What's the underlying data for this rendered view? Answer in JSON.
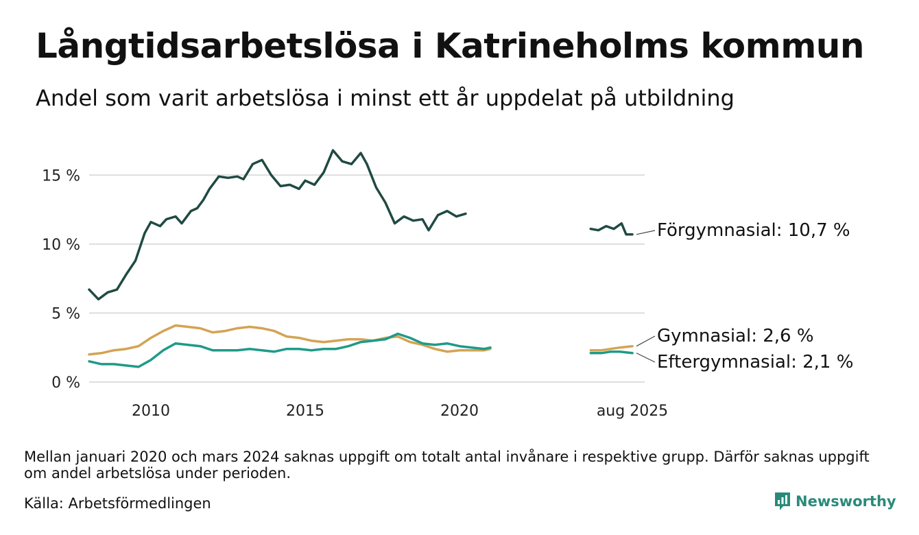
{
  "title": "Långtidsarbetslösa i Katrineholms kommun",
  "subtitle": "Andel som varit arbetslösa i minst ett år uppdelat på utbildning",
  "note": "Mellan januari 2020 och mars 2024 saknas uppgift om totalt antal invånare i respektive grupp. Därför saknas uppgift om andel arbetslösa under perioden.",
  "source": "Källa: Arbetsförmedlingen",
  "brand": "Newsworthy",
  "colors": {
    "forgymnasial": "#1f4a42",
    "gymnasial": "#d4a353",
    "eftergymnasial": "#1f9a88",
    "grid": "#dddddd"
  },
  "chart_data": {
    "type": "line",
    "xlim": [
      2008,
      2026
    ],
    "ylim": [
      0,
      17.5
    ],
    "y_ticks": [
      0,
      5,
      10,
      15
    ],
    "y_tick_labels": [
      "0 %",
      "5 %",
      "10 %",
      "15 %"
    ],
    "x_ticks": [
      2010,
      2015,
      2020,
      2025.6
    ],
    "x_tick_labels": [
      "2010",
      "2015",
      "2020",
      "aug 2025"
    ],
    "gap": [
      2021,
      2024.25
    ],
    "series": [
      {
        "key": "forgymnasial",
        "end_label": "Förgymnasial: 10,7 %",
        "x": [
          2008.0,
          2008.3,
          2008.6,
          2008.9,
          2009.2,
          2009.5,
          2009.8,
          2010.0,
          2010.3,
          2010.5,
          2010.8,
          2011.0,
          2011.3,
          2011.5,
          2011.7,
          2011.9,
          2012.2,
          2012.5,
          2012.8,
          2013.0,
          2013.3,
          2013.6,
          2013.9,
          2014.2,
          2014.5,
          2014.8,
          2015.0,
          2015.3,
          2015.6,
          2015.9,
          2016.2,
          2016.5,
          2016.8,
          2017.0,
          2017.3,
          2017.6,
          2017.9,
          2018.2,
          2018.5,
          2018.8,
          2019.0,
          2019.3,
          2019.6,
          2019.9,
          2020.2,
          2020.5,
          2020.8,
          2021.0,
          2024.25,
          2024.5,
          2024.75,
          2025.0,
          2025.25,
          2025.4,
          2025.6
        ],
        "y": [
          6.7,
          6.0,
          6.5,
          6.7,
          7.8,
          8.8,
          10.8,
          11.6,
          11.3,
          11.8,
          12.0,
          11.5,
          12.4,
          12.6,
          13.2,
          14.0,
          14.9,
          14.8,
          14.9,
          14.7,
          15.8,
          16.1,
          15.0,
          14.2,
          14.3,
          14.0,
          14.6,
          14.3,
          15.2,
          16.8,
          16.0,
          15.8,
          16.6,
          15.8,
          14.1,
          13.0,
          11.5,
          12.0,
          11.7,
          11.8,
          11.0,
          12.1,
          12.4,
          12.0,
          12.2,
          null,
          null,
          null,
          11.1,
          11.0,
          11.3,
          11.1,
          11.5,
          10.7,
          10.7
        ]
      },
      {
        "key": "gymnasial",
        "end_label": "Gymnasial:  2,6 %",
        "x": [
          2008.0,
          2008.4,
          2008.8,
          2009.2,
          2009.6,
          2010.0,
          2010.4,
          2010.8,
          2011.2,
          2011.6,
          2012.0,
          2012.4,
          2012.8,
          2013.2,
          2013.6,
          2014.0,
          2014.4,
          2014.8,
          2015.2,
          2015.6,
          2016.0,
          2016.4,
          2016.8,
          2017.2,
          2017.6,
          2018.0,
          2018.4,
          2018.8,
          2019.2,
          2019.6,
          2020.0,
          2020.4,
          2020.8,
          2021.0,
          2024.25,
          2024.6,
          2024.9,
          2025.2,
          2025.6
        ],
        "y": [
          2.0,
          2.1,
          2.3,
          2.4,
          2.6,
          3.2,
          3.7,
          4.1,
          4.0,
          3.9,
          3.6,
          3.7,
          3.9,
          4.0,
          3.9,
          3.7,
          3.3,
          3.2,
          3.0,
          2.9,
          3.0,
          3.1,
          3.1,
          3.0,
          3.2,
          3.3,
          2.9,
          2.7,
          2.4,
          2.2,
          2.3,
          2.3,
          2.3,
          2.4,
          2.3,
          2.3,
          2.4,
          2.5,
          2.6
        ]
      },
      {
        "key": "eftergymnasial",
        "end_label": "Eftergymnasial:  2,1 %",
        "x": [
          2008.0,
          2008.4,
          2008.8,
          2009.2,
          2009.6,
          2010.0,
          2010.4,
          2010.8,
          2011.2,
          2011.6,
          2012.0,
          2012.4,
          2012.8,
          2013.2,
          2013.6,
          2014.0,
          2014.4,
          2014.8,
          2015.2,
          2015.6,
          2016.0,
          2016.4,
          2016.8,
          2017.2,
          2017.6,
          2018.0,
          2018.4,
          2018.8,
          2019.2,
          2019.6,
          2020.0,
          2020.4,
          2020.8,
          2021.0,
          2024.25,
          2024.6,
          2024.9,
          2025.2,
          2025.6
        ],
        "y": [
          1.5,
          1.3,
          1.3,
          1.2,
          1.1,
          1.6,
          2.3,
          2.8,
          2.7,
          2.6,
          2.3,
          2.3,
          2.3,
          2.4,
          2.3,
          2.2,
          2.4,
          2.4,
          2.3,
          2.4,
          2.4,
          2.6,
          2.9,
          3.0,
          3.1,
          3.5,
          3.2,
          2.8,
          2.7,
          2.8,
          2.6,
          2.5,
          2.4,
          2.5,
          2.1,
          2.1,
          2.2,
          2.2,
          2.1
        ]
      }
    ]
  }
}
